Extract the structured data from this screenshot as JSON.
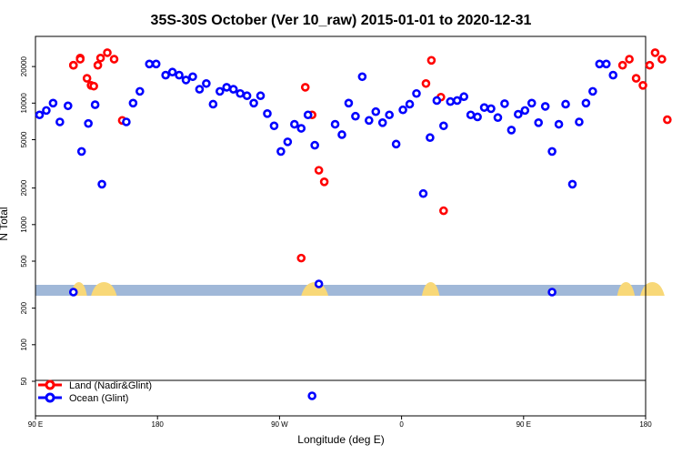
{
  "chart_data": {
    "type": "scatter",
    "title": "35S-30S October (Ver 10_raw)   2015-01-01 to 2020-12-31",
    "xlabel": "Longitude (deg E)",
    "ylabel": "N Total",
    "x_ticks": [
      {
        "x": 90,
        "label": "90 E"
      },
      {
        "x": 180,
        "label": "180"
      },
      {
        "x": 270,
        "label": "90 W"
      },
      {
        "x": 360,
        "label": "0"
      },
      {
        "x": 450,
        "label": "90 E"
      },
      {
        "x": 540,
        "label": "180"
      }
    ],
    "y_scale": "log",
    "y_ticks_upper": [
      500,
      1000,
      2000,
      5000,
      10000,
      20000
    ],
    "y_ticks_lower": [
      50,
      100,
      200
    ],
    "legend": {
      "placement": "bottom-left",
      "entries": [
        {
          "label": "Land (Nadir&Glint)",
          "color": "#ff0000"
        },
        {
          "label": "Ocean (Glint)",
          "color": "#0000ff"
        }
      ]
    },
    "colors": {
      "land": "#ff0000",
      "ocean": "#0000ff",
      "land_band": "#f8d878",
      "ocean_band": "#a0b8d8"
    },
    "series": [
      {
        "name": "Land (Nadir&Glint)",
        "points": [
          [
            118,
            20500
          ],
          [
            123,
            23500
          ],
          [
            128,
            16000
          ],
          [
            131,
            14000
          ],
          [
            138,
            23500
          ],
          [
            118,
            20500
          ],
          [
            123,
            23000
          ],
          [
            133,
            13800
          ],
          [
            136,
            20500
          ],
          [
            143,
            26000
          ],
          [
            148,
            23000
          ],
          [
            154,
            7200
          ],
          [
            286,
            530
          ],
          [
            289,
            13500
          ],
          [
            294,
            8000
          ],
          [
            299,
            2800
          ],
          [
            303,
            2250
          ],
          [
            378,
            14500
          ],
          [
            382,
            22500
          ],
          [
            389,
            11200
          ],
          [
            391,
            1300
          ],
          [
            523,
            20500
          ],
          [
            528,
            23000
          ],
          [
            533,
            16000
          ],
          [
            538,
            14000
          ],
          [
            543,
            20500
          ],
          [
            547,
            26000
          ],
          [
            552,
            23000
          ],
          [
            556,
            7300
          ]
        ]
      },
      {
        "name": "Ocean (Glint)",
        "points": [
          [
            93,
            8000
          ],
          [
            98,
            8700
          ],
          [
            103,
            10000
          ],
          [
            108,
            7000
          ],
          [
            114,
            9500
          ],
          [
            124,
            4000
          ],
          [
            129,
            6800
          ],
          [
            134,
            9700
          ],
          [
            139,
            2150
          ],
          [
            157,
            7000
          ],
          [
            162,
            10000
          ],
          [
            167,
            12500
          ],
          [
            174,
            21000
          ],
          [
            179,
            21000
          ],
          [
            186,
            17000
          ],
          [
            191,
            18000
          ],
          [
            196,
            17000
          ],
          [
            201,
            15500
          ],
          [
            206,
            16500
          ],
          [
            211,
            13000
          ],
          [
            216,
            14500
          ],
          [
            221,
            9800
          ],
          [
            226,
            12500
          ],
          [
            231,
            13500
          ],
          [
            236,
            13000
          ],
          [
            241,
            12000
          ],
          [
            246,
            11500
          ],
          [
            251,
            10000
          ],
          [
            256,
            11500
          ],
          [
            261,
            8200
          ],
          [
            266,
            6500
          ],
          [
            271,
            4000
          ],
          [
            276,
            4800
          ],
          [
            281,
            6700
          ],
          [
            286,
            6200
          ],
          [
            291,
            8000
          ],
          [
            296,
            4500
          ],
          [
            311,
            6700
          ],
          [
            316,
            5500
          ],
          [
            321,
            10000
          ],
          [
            326,
            7800
          ],
          [
            331,
            16500
          ],
          [
            336,
            7200
          ],
          [
            341,
            8500
          ],
          [
            346,
            6900
          ],
          [
            351,
            8000
          ],
          [
            356,
            4600
          ],
          [
            361,
            8800
          ],
          [
            366,
            9800
          ],
          [
            371,
            12000
          ],
          [
            376,
            1800
          ],
          [
            381,
            5200
          ],
          [
            386,
            10500
          ],
          [
            391,
            6500
          ],
          [
            396,
            10300
          ],
          [
            401,
            10500
          ],
          [
            406,
            11300
          ],
          [
            411,
            8000
          ],
          [
            416,
            7700
          ],
          [
            421,
            9200
          ],
          [
            426,
            9000
          ],
          [
            431,
            7600
          ],
          [
            436,
            9900
          ],
          [
            441,
            6000
          ],
          [
            446,
            8100
          ],
          [
            451,
            8700
          ],
          [
            456,
            10000
          ],
          [
            461,
            6900
          ],
          [
            466,
            9400
          ],
          [
            471,
            4000
          ],
          [
            476,
            6700
          ],
          [
            481,
            9800
          ],
          [
            486,
            2150
          ],
          [
            491,
            7000
          ],
          [
            496,
            10000
          ],
          [
            501,
            12500
          ],
          [
            506,
            21000
          ],
          [
            511,
            21000
          ],
          [
            516,
            17000
          ]
        ]
      }
    ],
    "below_axis_points": [
      {
        "series": "Ocean (Glint)",
        "x": 118,
        "value": 280
      },
      {
        "series": "Ocean (Glint)",
        "x": 299,
        "value": 355
      },
      {
        "series": "Ocean (Glint)",
        "x": 471,
        "value": 280
      },
      {
        "series": "Ocean (Glint)",
        "x": 294,
        "value": 30
      }
    ],
    "landmask_land_ranges_deg": [
      [
        116,
        128
      ],
      [
        131,
        150
      ],
      [
        286,
        306
      ],
      [
        375,
        388
      ],
      [
        519,
        532
      ],
      [
        536,
        554
      ]
    ]
  }
}
